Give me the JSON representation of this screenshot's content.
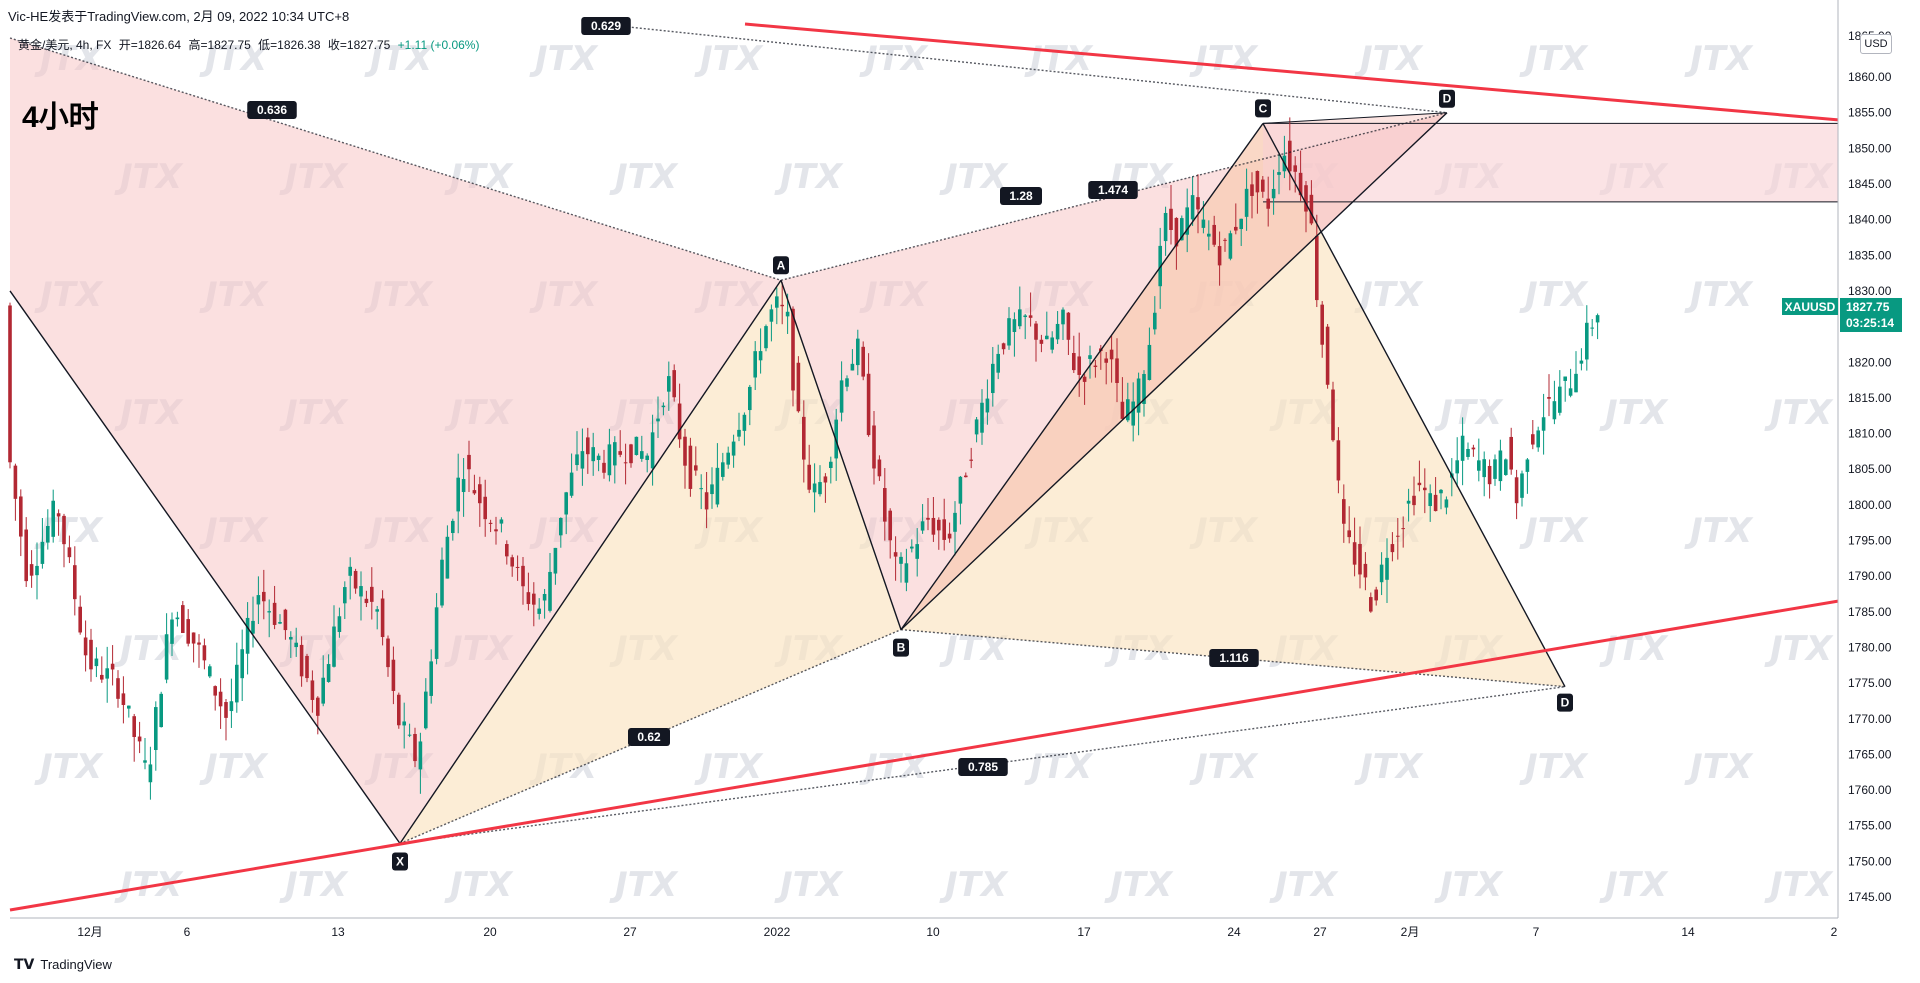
{
  "header": {
    "author_line": "Vic-HE发表于TradingView.com,  2月 09, 2022 10:34 UTC+8",
    "symbol": "黄金/美元, 4h, FX",
    "open": "开=1826.64",
    "high": "高=1827.75",
    "low": "低=1826.38",
    "close": "收=1827.75",
    "change": "+1.11 (+0.06%)",
    "timeframe_label": "4小时",
    "currency_button": "USD"
  },
  "footer": {
    "brand": "TradingView"
  },
  "price_tag": {
    "symbol": "XAUUSD",
    "price": "1827.75",
    "countdown": "03:25:14",
    "color": "#089981"
  },
  "colors": {
    "up": "#089981",
    "down": "#b22833",
    "trendline": "#f23645",
    "pink_fill": "#f7c6c6",
    "orange_fill": "#fbe3c0"
  },
  "watermark": "JTX",
  "chart_data": {
    "type": "candlestick",
    "title": "黄金/美元, 4h, FX",
    "y_ticks": [
      1745,
      1750,
      1755,
      1760,
      1765,
      1770,
      1775,
      1780,
      1785,
      1790,
      1795,
      1800,
      1805,
      1810,
      1815,
      1820,
      1825,
      1830,
      1835,
      1840,
      1845,
      1850,
      1855,
      1860
    ],
    "y_top_label": "1865.00",
    "ylim": [
      1742.5,
      1866
    ],
    "x_ticks": [
      {
        "label": "12月",
        "x": 90
      },
      {
        "label": "6",
        "x": 187
      },
      {
        "label": "13",
        "x": 338
      },
      {
        "label": "20",
        "x": 490
      },
      {
        "label": "27",
        "x": 630
      },
      {
        "label": "2022",
        "x": 777
      },
      {
        "label": "10",
        "x": 933
      },
      {
        "label": "17",
        "x": 1084
      },
      {
        "label": "24",
        "x": 1234
      },
      {
        "label": "27",
        "x": 1320
      },
      {
        "label": "2月",
        "x": 1410
      },
      {
        "label": "7",
        "x": 1536
      },
      {
        "label": "14",
        "x": 1688
      },
      {
        "label": "2",
        "x": 1834
      }
    ],
    "pattern_points": [
      {
        "label": "X",
        "price": 1752.5
      },
      {
        "label": "A",
        "price": 1831.5
      },
      {
        "label": "B",
        "price": 1782.5
      },
      {
        "label": "C",
        "price": 1853.5
      },
      {
        "label": "D",
        "price": 1774.5
      },
      {
        "label": "D",
        "price": 1855.0
      }
    ],
    "ratios": [
      "0.636",
      "1.28",
      "1.474",
      "0.62",
      "1.116",
      "0.785",
      "0.629"
    ],
    "zone": {
      "top": 1853.5,
      "bottom": 1842.5
    },
    "price_path": [
      [
        8,
        1810
      ],
      [
        30,
        1790
      ],
      [
        60,
        1800
      ],
      [
        90,
        1778
      ],
      [
        120,
        1775
      ],
      [
        150,
        1762
      ],
      [
        175,
        1786
      ],
      [
        200,
        1780
      ],
      [
        230,
        1770
      ],
      [
        260,
        1788
      ],
      [
        290,
        1782
      ],
      [
        320,
        1772
      ],
      [
        350,
        1790
      ],
      [
        380,
        1785
      ],
      [
        400,
        1770
      ],
      [
        420,
        1764
      ],
      [
        430,
        1775
      ],
      [
        445,
        1792
      ],
      [
        465,
        1806
      ],
      [
        485,
        1800
      ],
      [
        505,
        1796
      ],
      [
        525,
        1788
      ],
      [
        545,
        1785
      ],
      [
        565,
        1800
      ],
      [
        585,
        1808
      ],
      [
        605,
        1806
      ],
      [
        630,
        1808
      ],
      [
        650,
        1807
      ],
      [
        670,
        1818
      ],
      [
        690,
        1805
      ],
      [
        710,
        1800
      ],
      [
        730,
        1808
      ],
      [
        750,
        1815
      ],
      [
        765,
        1824
      ],
      [
        778,
        1828
      ],
      [
        790,
        1826
      ],
      [
        800,
        1812
      ],
      [
        815,
        1801
      ],
      [
        830,
        1805
      ],
      [
        845,
        1818
      ],
      [
        860,
        1822
      ],
      [
        875,
        1808
      ],
      [
        890,
        1796
      ],
      [
        900,
        1790
      ],
      [
        915,
        1794
      ],
      [
        930,
        1798
      ],
      [
        950,
        1795
      ],
      [
        970,
        1806
      ],
      [
        985,
        1814
      ],
      [
        1000,
        1822
      ],
      [
        1015,
        1825
      ],
      [
        1030,
        1826
      ],
      [
        1050,
        1822
      ],
      [
        1065,
        1826
      ],
      [
        1080,
        1818
      ],
      [
        1095,
        1820
      ],
      [
        1110,
        1822
      ],
      [
        1125,
        1812
      ],
      [
        1140,
        1815
      ],
      [
        1155,
        1825
      ],
      [
        1165,
        1840
      ],
      [
        1180,
        1838
      ],
      [
        1195,
        1842
      ],
      [
        1210,
        1838
      ],
      [
        1225,
        1835
      ],
      [
        1240,
        1840
      ],
      [
        1255,
        1845
      ],
      [
        1270,
        1842
      ],
      [
        1285,
        1850
      ],
      [
        1300,
        1846
      ],
      [
        1312,
        1842
      ],
      [
        1322,
        1826
      ],
      [
        1332,
        1816
      ],
      [
        1345,
        1796
      ],
      [
        1360,
        1792
      ],
      [
        1375,
        1786
      ],
      [
        1390,
        1794
      ],
      [
        1405,
        1798
      ],
      [
        1420,
        1803
      ],
      [
        1435,
        1800
      ],
      [
        1450,
        1802
      ],
      [
        1465,
        1808
      ],
      [
        1480,
        1806
      ],
      [
        1495,
        1804
      ],
      [
        1510,
        1808
      ],
      [
        1520,
        1800
      ],
      [
        1530,
        1808
      ],
      [
        1545,
        1813
      ],
      [
        1560,
        1815
      ],
      [
        1575,
        1818
      ],
      [
        1590,
        1824
      ],
      [
        1602,
        1828
      ]
    ]
  }
}
